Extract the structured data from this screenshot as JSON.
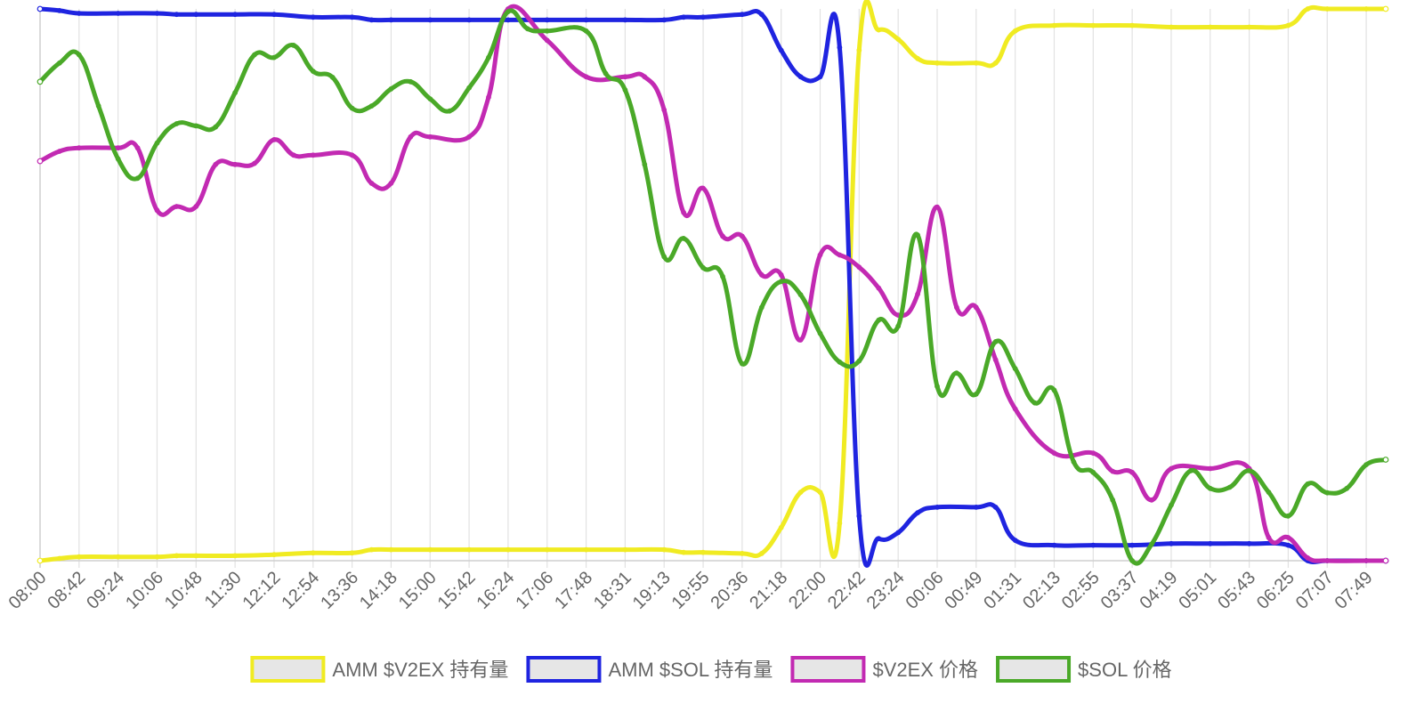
{
  "chart_data": {
    "type": "line",
    "title": "",
    "xlabel": "",
    "ylabel": "",
    "grid": true,
    "legend_position": "bottom",
    "x_tick_labels": [
      "08:00",
      "08:42",
      "09:24",
      "10:06",
      "10:48",
      "11:30",
      "12:12",
      "12:54",
      "13:36",
      "14:18",
      "15:00",
      "15:42",
      "16:24",
      "17:06",
      "17:48",
      "18:31",
      "19:13",
      "19:55",
      "20:36",
      "21:18",
      "22:00",
      "22:42",
      "23:24",
      "00:06",
      "00:49",
      "01:31",
      "02:13",
      "02:55",
      "03:37",
      "04:19",
      "05:01",
      "05:43",
      "06:25",
      "07:07",
      "07:49"
    ],
    "ylim": [
      0,
      1
    ],
    "series": [
      {
        "name": "AMM $V2EX 持有量",
        "color": "#f0eb22",
        "values": [
          [
            0,
            0.0
          ],
          [
            0.5,
            0.004
          ],
          [
            1,
            0.007
          ],
          [
            2,
            0.007
          ],
          [
            3,
            0.007
          ],
          [
            3.5,
            0.009
          ],
          [
            4,
            0.009
          ],
          [
            5,
            0.009
          ],
          [
            6,
            0.011
          ],
          [
            7,
            0.014
          ],
          [
            8,
            0.014
          ],
          [
            8.5,
            0.02
          ],
          [
            9,
            0.02
          ],
          [
            10,
            0.02
          ],
          [
            11,
            0.02
          ],
          [
            12,
            0.02
          ],
          [
            13,
            0.02
          ],
          [
            14,
            0.02
          ],
          [
            15,
            0.02
          ],
          [
            16,
            0.02
          ],
          [
            16.5,
            0.015
          ],
          [
            17,
            0.015
          ],
          [
            18,
            0.013
          ],
          [
            18.5,
            0.013
          ],
          [
            19,
            0.06
          ],
          [
            19.5,
            0.124
          ],
          [
            20,
            0.124
          ],
          [
            20.5,
            0.068
          ],
          [
            21,
            0.925
          ],
          [
            21.5,
            0.962
          ],
          [
            22,
            0.945
          ],
          [
            22.5,
            0.91
          ],
          [
            23,
            0.902
          ],
          [
            24,
            0.902
          ],
          [
            24.5,
            0.902
          ],
          [
            25,
            0.96
          ],
          [
            26,
            0.97
          ],
          [
            27,
            0.97
          ],
          [
            28,
            0.97
          ],
          [
            29,
            0.967
          ],
          [
            30,
            0.967
          ],
          [
            31,
            0.967
          ],
          [
            32,
            0.97
          ],
          [
            32.5,
            1.0
          ],
          [
            33,
            1.0
          ],
          [
            34,
            1.0
          ],
          [
            34.5,
            1.0
          ]
        ]
      },
      {
        "name": "AMM $SOL 持有量",
        "color": "#1f24e0",
        "values": [
          [
            0,
            1.0
          ],
          [
            0.5,
            0.997
          ],
          [
            1,
            0.992
          ],
          [
            2,
            0.992
          ],
          [
            3,
            0.992
          ],
          [
            3.5,
            0.99
          ],
          [
            4,
            0.99
          ],
          [
            5,
            0.99
          ],
          [
            6,
            0.99
          ],
          [
            7,
            0.985
          ],
          [
            8,
            0.985
          ],
          [
            8.5,
            0.98
          ],
          [
            9,
            0.98
          ],
          [
            10,
            0.98
          ],
          [
            11,
            0.98
          ],
          [
            12,
            0.98
          ],
          [
            13,
            0.98
          ],
          [
            14,
            0.98
          ],
          [
            15,
            0.98
          ],
          [
            16,
            0.98
          ],
          [
            16.5,
            0.985
          ],
          [
            17,
            0.985
          ],
          [
            18,
            0.99
          ],
          [
            18.5,
            0.99
          ],
          [
            19,
            0.925
          ],
          [
            19.5,
            0.877
          ],
          [
            20,
            0.877
          ],
          [
            20.5,
            0.93
          ],
          [
            21,
            0.081
          ],
          [
            21.5,
            0.04
          ],
          [
            22,
            0.051
          ],
          [
            22.5,
            0.087
          ],
          [
            23,
            0.097
          ],
          [
            24,
            0.097
          ],
          [
            24.5,
            0.097
          ],
          [
            25,
            0.037
          ],
          [
            26,
            0.028
          ],
          [
            27,
            0.028
          ],
          [
            28,
            0.028
          ],
          [
            29,
            0.031
          ],
          [
            30,
            0.031
          ],
          [
            31,
            0.031
          ],
          [
            32,
            0.028
          ],
          [
            32.5,
            0.0
          ],
          [
            33,
            0.0
          ],
          [
            34,
            0.0
          ],
          [
            34.5,
            0.0
          ]
        ]
      },
      {
        "name": "$V2EX 价格",
        "color": "#c22ab2",
        "values": [
          [
            0,
            0.724
          ],
          [
            0.5,
            0.742
          ],
          [
            1,
            0.748
          ],
          [
            2,
            0.748
          ],
          [
            2.5,
            0.748
          ],
          [
            3,
            0.635
          ],
          [
            3.5,
            0.642
          ],
          [
            4,
            0.642
          ],
          [
            4.5,
            0.718
          ],
          [
            5,
            0.718
          ],
          [
            5.5,
            0.72
          ],
          [
            6,
            0.763
          ],
          [
            6.5,
            0.735
          ],
          [
            7,
            0.735
          ],
          [
            8,
            0.735
          ],
          [
            8.5,
            0.684
          ],
          [
            9,
            0.684
          ],
          [
            9.5,
            0.768
          ],
          [
            10,
            0.768
          ],
          [
            11,
            0.768
          ],
          [
            11.5,
            0.84
          ],
          [
            12,
            1.0
          ],
          [
            13,
            0.943
          ],
          [
            14,
            0.877
          ],
          [
            15,
            0.877
          ],
          [
            15.5,
            0.877
          ],
          [
            16,
            0.817
          ],
          [
            16.5,
            0.631
          ],
          [
            17,
            0.675
          ],
          [
            17.5,
            0.588
          ],
          [
            18,
            0.588
          ],
          [
            18.5,
            0.518
          ],
          [
            19,
            0.518
          ],
          [
            19.5,
            0.4
          ],
          [
            20,
            0.554
          ],
          [
            20.5,
            0.554
          ],
          [
            21,
            0.532
          ],
          [
            21.5,
            0.494
          ],
          [
            22,
            0.445
          ],
          [
            22.5,
            0.483
          ],
          [
            23,
            0.641
          ],
          [
            23.5,
            0.459
          ],
          [
            24,
            0.459
          ],
          [
            24.5,
            0.364
          ],
          [
            25,
            0.275
          ],
          [
            26,
            0.195
          ],
          [
            27,
            0.195
          ],
          [
            27.5,
            0.162
          ],
          [
            28,
            0.16
          ],
          [
            28.5,
            0.11
          ],
          [
            29,
            0.167
          ],
          [
            30,
            0.167
          ],
          [
            31,
            0.167
          ],
          [
            31.5,
            0.042
          ],
          [
            32,
            0.042
          ],
          [
            32.5,
            0.005
          ],
          [
            33,
            0.0
          ],
          [
            34,
            0.0
          ],
          [
            34.5,
            0.0
          ]
        ]
      },
      {
        "name": "$SOL 价格",
        "color": "#4aa928",
        "values": [
          [
            0,
            0.868
          ],
          [
            0.5,
            0.902
          ],
          [
            1,
            0.917
          ],
          [
            1.5,
            0.824
          ],
          [
            2,
            0.728
          ],
          [
            2.5,
            0.693
          ],
          [
            3,
            0.757
          ],
          [
            3.5,
            0.792
          ],
          [
            4,
            0.788
          ],
          [
            4.5,
            0.786
          ],
          [
            5,
            0.848
          ],
          [
            5.5,
            0.917
          ],
          [
            6,
            0.912
          ],
          [
            6.5,
            0.934
          ],
          [
            7,
            0.887
          ],
          [
            7.5,
            0.876
          ],
          [
            8,
            0.82
          ],
          [
            8.5,
            0.824
          ],
          [
            9,
            0.855
          ],
          [
            9.5,
            0.868
          ],
          [
            10,
            0.837
          ],
          [
            10.5,
            0.815
          ],
          [
            11,
            0.857
          ],
          [
            11.5,
            0.912
          ],
          [
            12,
            0.995
          ],
          [
            12.5,
            0.964
          ],
          [
            13,
            0.96
          ],
          [
            14,
            0.96
          ],
          [
            14.5,
            0.883
          ],
          [
            15,
            0.853
          ],
          [
            15.5,
            0.718
          ],
          [
            16,
            0.551
          ],
          [
            16.5,
            0.584
          ],
          [
            17,
            0.531
          ],
          [
            17.5,
            0.515
          ],
          [
            18,
            0.357
          ],
          [
            18.5,
            0.459
          ],
          [
            19,
            0.506
          ],
          [
            19.5,
            0.482
          ],
          [
            20,
            0.412
          ],
          [
            20.5,
            0.36
          ],
          [
            21,
            0.362
          ],
          [
            21.5,
            0.436
          ],
          [
            22,
            0.425
          ],
          [
            22.5,
            0.59
          ],
          [
            23,
            0.316
          ],
          [
            23.5,
            0.34
          ],
          [
            24,
            0.302
          ],
          [
            24.5,
            0.397
          ],
          [
            25,
            0.348
          ],
          [
            25.5,
            0.286
          ],
          [
            26,
            0.309
          ],
          [
            26.5,
            0.179
          ],
          [
            27,
            0.16
          ],
          [
            27.5,
            0.11
          ],
          [
            28,
            0.0
          ],
          [
            28.5,
            0.03
          ],
          [
            29,
            0.101
          ],
          [
            29.5,
            0.163
          ],
          [
            30,
            0.131
          ],
          [
            30.5,
            0.133
          ],
          [
            31,
            0.163
          ],
          [
            31.5,
            0.124
          ],
          [
            32,
            0.081
          ],
          [
            32.5,
            0.139
          ],
          [
            33,
            0.123
          ],
          [
            33.5,
            0.131
          ],
          [
            34,
            0.174
          ],
          [
            34.5,
            0.183
          ]
        ]
      }
    ]
  }
}
